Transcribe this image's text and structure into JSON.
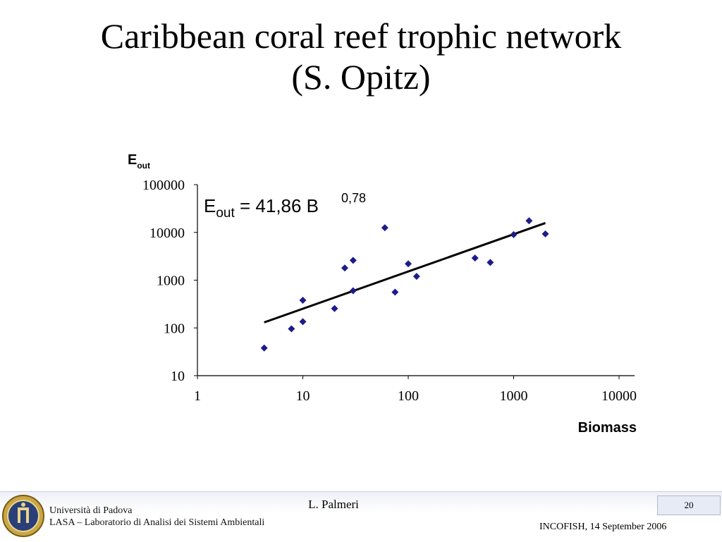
{
  "slide": {
    "title_line1": "Caribbean coral reef trophic network",
    "title_line2": "(S. Opitz)"
  },
  "footer": {
    "university": "Università di Padova",
    "lab": "LASA – Laboratorio di Analisi dei Sistemi Ambientali",
    "author": "L. Palmeri",
    "page_number": "20",
    "event": "INCOFISH, 14 September 2006"
  },
  "colors": {
    "points": "#1c1c8a",
    "fit_line": "#000000",
    "axis": "#000000"
  },
  "chart_data": {
    "type": "scatter",
    "title": "",
    "xlabel": "Biomass",
    "ylabel_main": "E",
    "ylabel_sub": "out",
    "equation_lhs": "E",
    "equation_sub": "out",
    "equation_rhs": " = 41,86 B",
    "equation_exp": "0,78",
    "x_scale": "log",
    "y_scale": "log",
    "xlim": [
      1,
      10000
    ],
    "ylim": [
      10,
      100000
    ],
    "x_ticks": [
      "1",
      "10",
      "100",
      "1000",
      "10000"
    ],
    "y_ticks": [
      "10",
      "100",
      "1000",
      "10000",
      "100000"
    ],
    "grid": false,
    "legend": "none",
    "points": [
      {
        "x": 4.3,
        "y": 38
      },
      {
        "x": 7.8,
        "y": 96
      },
      {
        "x": 10,
        "y": 380
      },
      {
        "x": 10,
        "y": 135
      },
      {
        "x": 20,
        "y": 255
      },
      {
        "x": 25,
        "y": 1800
      },
      {
        "x": 30,
        "y": 2600
      },
      {
        "x": 30,
        "y": 600
      },
      {
        "x": 60,
        "y": 12500
      },
      {
        "x": 75,
        "y": 560
      },
      {
        "x": 100,
        "y": 2200
      },
      {
        "x": 120,
        "y": 1200
      },
      {
        "x": 430,
        "y": 2900
      },
      {
        "x": 600,
        "y": 2350
      },
      {
        "x": 1000,
        "y": 9000
      },
      {
        "x": 1400,
        "y": 17500
      },
      {
        "x": 2000,
        "y": 9300
      }
    ],
    "fit": {
      "a": 41.86,
      "b": 0.78,
      "x_from": 4.3,
      "x_to": 2000
    }
  }
}
